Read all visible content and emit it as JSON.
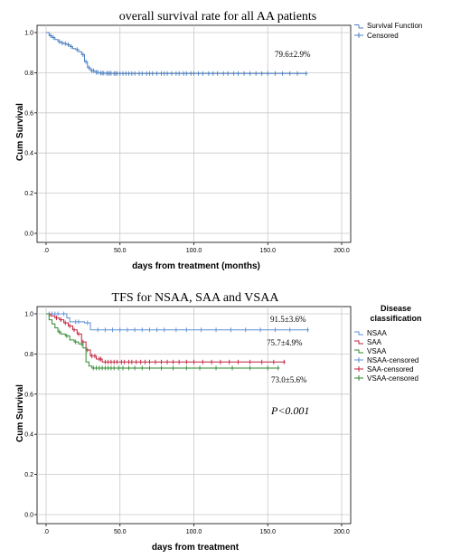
{
  "chart_data": [
    {
      "type": "line",
      "title": "overall survival rate for all AA patients",
      "xlabel": "days from treatment (months)",
      "ylabel": "Cum Survival",
      "xlim": [
        0,
        200
      ],
      "ylim": [
        0,
        1.0
      ],
      "xticks": [
        ".0",
        "50.0",
        "100.0",
        "150.0",
        "200.0"
      ],
      "yticks": [
        "0.0",
        "0.2",
        "0.4",
        "0.6",
        "0.8",
        "1.0"
      ],
      "grid": true,
      "legend_position": "right",
      "legend": [
        "Survival Function",
        "Censored"
      ],
      "annotations": [
        "79.6±2.9%"
      ],
      "series": [
        {
          "name": "Survival Function",
          "color": "#4a7fc1",
          "x": [
            0,
            2,
            4,
            6,
            8,
            10,
            12,
            14,
            16,
            18,
            20,
            22,
            24,
            26,
            28,
            30,
            33,
            36,
            40,
            45,
            177
          ],
          "y": [
            1.0,
            0.985,
            0.975,
            0.965,
            0.955,
            0.948,
            0.945,
            0.94,
            0.93,
            0.92,
            0.915,
            0.905,
            0.89,
            0.855,
            0.825,
            0.81,
            0.802,
            0.798,
            0.797,
            0.796,
            0.796
          ],
          "censored_x": [
            3,
            5,
            9,
            11,
            13,
            15,
            17,
            21,
            25,
            27,
            29,
            31,
            32,
            34,
            35,
            37,
            38,
            39,
            41,
            42,
            43,
            44,
            46,
            47,
            48,
            50,
            52,
            54,
            56,
            58,
            60,
            63,
            65,
            68,
            70,
            72,
            75,
            78,
            80,
            82,
            85,
            88,
            90,
            93,
            95,
            98,
            100,
            103,
            106,
            110,
            113,
            116,
            120,
            123,
            127,
            130,
            134,
            138,
            142,
            146,
            150,
            155,
            160,
            165,
            170,
            176
          ]
        }
      ]
    },
    {
      "type": "line",
      "title": "TFS for NSAA, SAA and VSAA",
      "xlabel": "days from treatment",
      "ylabel": "Cum Survival",
      "xlim": [
        0,
        200
      ],
      "ylim": [
        0,
        1.0
      ],
      "xticks": [
        ".0",
        "50.0",
        "100.0",
        "150.0",
        "200.0"
      ],
      "yticks": [
        "0.0",
        "0.2",
        "0.4",
        "0.6",
        "0.8",
        "1.0"
      ],
      "grid": true,
      "legend_position": "right",
      "legend_title": "Disease classification",
      "legend": [
        "NSAA",
        "SAA",
        "VSAA",
        "NSAA-censored",
        "SAA-censored",
        "VSAA-censored"
      ],
      "annotations": [
        "91.5±3.6%",
        "75.7±4.9%",
        "73.0±5.6%",
        "P<0.001"
      ],
      "series": [
        {
          "name": "NSAA",
          "color": "#5b8fd6",
          "x": [
            0,
            10,
            14,
            16,
            26,
            30,
            178
          ],
          "y": [
            1.0,
            1.0,
            0.98,
            0.96,
            0.955,
            0.92,
            0.92
          ],
          "censored_x": [
            2,
            4,
            6,
            8,
            12,
            20,
            22,
            28,
            35,
            40,
            45,
            50,
            55,
            60,
            65,
            70,
            75,
            80,
            88,
            95,
            105,
            115,
            125,
            135,
            145,
            155,
            165,
            177
          ]
        },
        {
          "name": "SAA",
          "color": "#c0203a",
          "x": [
            0,
            3,
            6,
            9,
            12,
            15,
            18,
            21,
            24,
            27,
            30,
            34,
            38,
            162
          ],
          "y": [
            1.0,
            0.99,
            0.98,
            0.97,
            0.955,
            0.94,
            0.92,
            0.9,
            0.86,
            0.82,
            0.79,
            0.775,
            0.76,
            0.76
          ],
          "censored_x": [
            7,
            10,
            13,
            16,
            19,
            22,
            25,
            28,
            31,
            33,
            36,
            37,
            40,
            42,
            44,
            46,
            48,
            51,
            53,
            56,
            58,
            61,
            64,
            67,
            70,
            74,
            78,
            82,
            86,
            90,
            95,
            100,
            106,
            112,
            118,
            124,
            130,
            138,
            146,
            154,
            161
          ]
        },
        {
          "name": "VSAA",
          "color": "#2e8a2e",
          "x": [
            0,
            2,
            4,
            6,
            8,
            10,
            13,
            16,
            19,
            22,
            25,
            27,
            29,
            31,
            35,
            158
          ],
          "y": [
            1.0,
            0.97,
            0.95,
            0.93,
            0.91,
            0.9,
            0.89,
            0.87,
            0.86,
            0.85,
            0.83,
            0.76,
            0.74,
            0.73,
            0.73,
            0.73
          ],
          "censored_x": [
            9,
            14,
            20,
            24,
            32,
            34,
            36,
            38,
            40,
            42,
            44,
            46,
            49,
            52,
            56,
            60,
            65,
            70,
            78,
            86,
            95,
            104,
            115,
            126,
            138,
            150,
            157
          ]
        }
      ]
    }
  ]
}
